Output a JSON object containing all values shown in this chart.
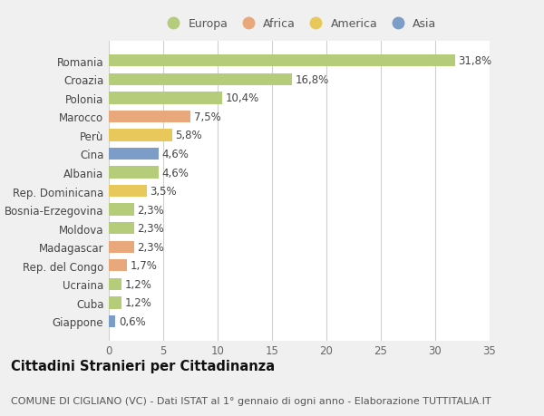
{
  "categories": [
    "Giappone",
    "Cuba",
    "Ucraina",
    "Rep. del Congo",
    "Madagascar",
    "Moldova",
    "Bosnia-Erzegovina",
    "Rep. Dominicana",
    "Albania",
    "Cina",
    "Perù",
    "Marocco",
    "Polonia",
    "Croazia",
    "Romania"
  ],
  "values": [
    0.6,
    1.2,
    1.2,
    1.7,
    2.3,
    2.3,
    2.3,
    3.5,
    4.6,
    4.6,
    5.8,
    7.5,
    10.4,
    16.8,
    31.8
  ],
  "labels": [
    "0,6%",
    "1,2%",
    "1,2%",
    "1,7%",
    "2,3%",
    "2,3%",
    "2,3%",
    "3,5%",
    "4,6%",
    "4,6%",
    "5,8%",
    "7,5%",
    "10,4%",
    "16,8%",
    "31,8%"
  ],
  "colors": [
    "#7b9dc7",
    "#b5cc7a",
    "#b5cc7a",
    "#e8a87c",
    "#e8a87c",
    "#b5cc7a",
    "#b5cc7a",
    "#e8c85a",
    "#b5cc7a",
    "#7b9dc7",
    "#e8c85a",
    "#e8a87c",
    "#b5cc7a",
    "#b5cc7a",
    "#b5cc7a"
  ],
  "legend_labels": [
    "Europa",
    "Africa",
    "America",
    "Asia"
  ],
  "legend_colors": [
    "#b5cc7a",
    "#e8a87c",
    "#e8c85a",
    "#7b9dc7"
  ],
  "title": "Cittadini Stranieri per Cittadinanza",
  "subtitle": "COMUNE DI CIGLIANO (VC) - Dati ISTAT al 1° gennaio di ogni anno - Elaborazione TUTTITALIA.IT",
  "xlim": [
    0,
    35
  ],
  "xticks": [
    0,
    5,
    10,
    15,
    20,
    25,
    30,
    35
  ],
  "background_color": "#f0f0f0",
  "plot_bg_color": "#ffffff",
  "grid_color": "#d0d0d0",
  "bar_height": 0.65,
  "title_fontsize": 10.5,
  "subtitle_fontsize": 8,
  "tick_fontsize": 8.5,
  "label_fontsize": 8.5
}
